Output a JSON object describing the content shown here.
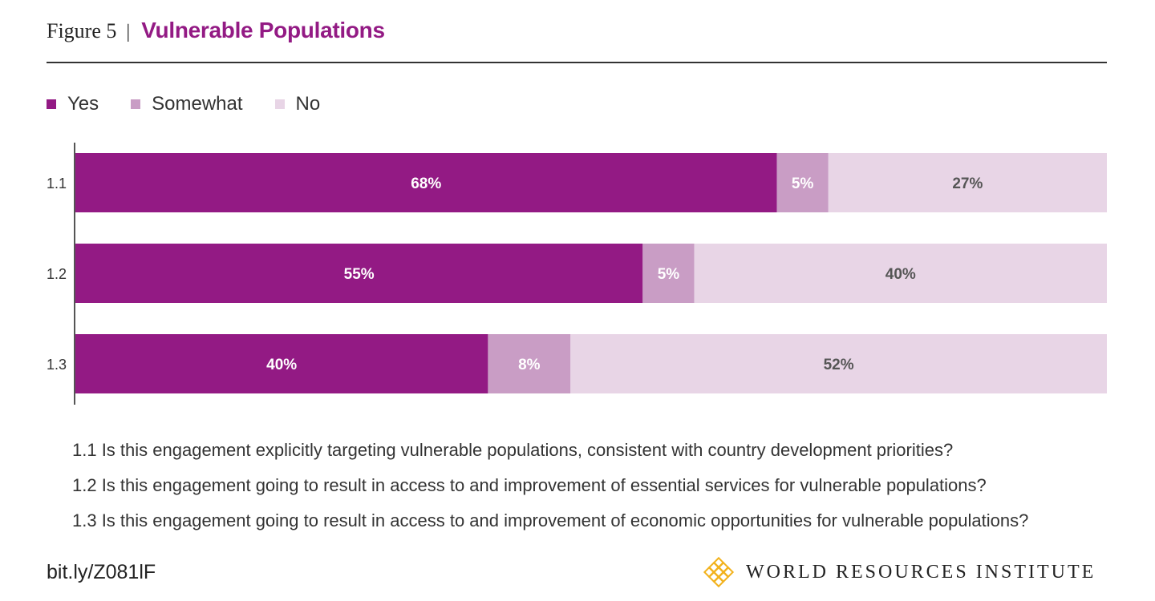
{
  "header": {
    "figure_label": "Figure 5",
    "separator": "|",
    "title": "Vulnerable Populations"
  },
  "colors": {
    "yes": "#931a84",
    "somewhat": "#c99dc5",
    "no": "#e8d5e6",
    "title": "#931a84",
    "logo": "#f2b21d"
  },
  "legend": [
    {
      "label": "Yes",
      "color": "#931a84"
    },
    {
      "label": "Somewhat",
      "color": "#c99dc5"
    },
    {
      "label": "No",
      "color": "#e8d5e6"
    }
  ],
  "chart_data": {
    "type": "bar",
    "orientation": "horizontal",
    "stacked": true,
    "categories": [
      "1.1",
      "1.2",
      "1.3"
    ],
    "series": [
      {
        "name": "Yes",
        "values": [
          68,
          55,
          40
        ],
        "labels": [
          "68%",
          "55%",
          "40%"
        ]
      },
      {
        "name": "Somewhat",
        "values": [
          5,
          5,
          8
        ],
        "labels": [
          "5%",
          "5%",
          "8%"
        ]
      },
      {
        "name": "No",
        "values": [
          27,
          40,
          52
        ],
        "labels": [
          "27%",
          "40%",
          "52%"
        ]
      }
    ],
    "xlim": [
      0,
      100
    ],
    "legend_position": "top-left",
    "grid": false
  },
  "notes": [
    "1.1 Is this engagement explicitly targeting vulnerable populations, consistent with country development priorities?",
    "1.2 Is this engagement going to result in access to and improvement of essential services for vulnerable populations?",
    "1.3 Is this engagement going to result in access to and improvement of economic opportunities for vulnerable populations?"
  ],
  "footer": {
    "link": "bit.ly/Z081lF",
    "organization": "WORLD RESOURCES INSTITUTE",
    "logo_icon": "wri-logo-icon"
  }
}
